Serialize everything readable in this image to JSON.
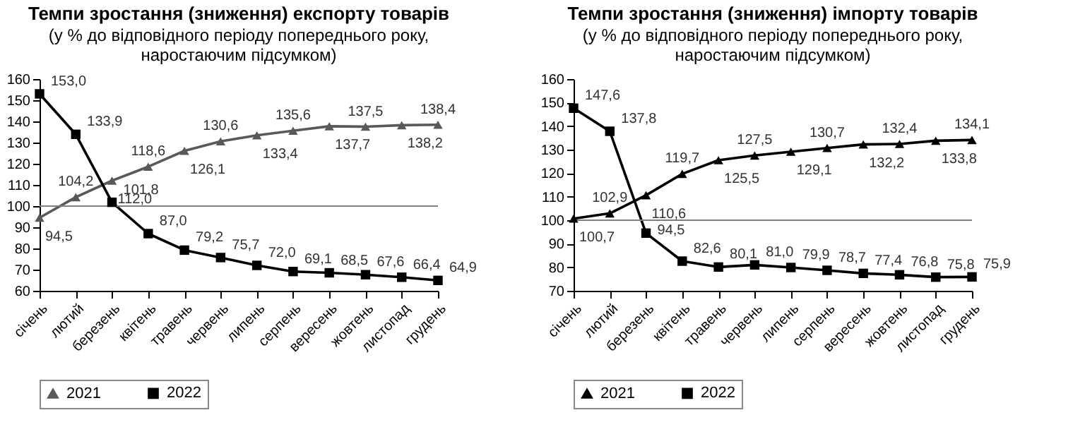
{
  "chart_data": [
    {
      "type": "line",
      "title": "Темпи зростання (зниження) експорту товарів",
      "subtitle": "(у % до відповідного періоду попереднього року, наростаючим підсумком)",
      "categories": [
        "січень",
        "лютий",
        "березень",
        "квітень",
        "травень",
        "червень",
        "липень",
        "серпень",
        "вересень",
        "жовтень",
        "листопад",
        "грудень"
      ],
      "series": [
        {
          "name": "2021",
          "color": "#595959",
          "marker": "triangle",
          "values": [
            94.5,
            104.2,
            112.0,
            118.6,
            126.1,
            130.6,
            133.4,
            135.6,
            137.7,
            137.5,
            138.2,
            138.4
          ],
          "value_labels": [
            "94,5",
            "104,2",
            "112,0",
            "118,6",
            "126,1",
            "130,6",
            "133,4",
            "135,6",
            "137,7",
            "137,5",
            "138,2",
            "138,4"
          ]
        },
        {
          "name": "2022",
          "color": "#000000",
          "marker": "square",
          "values": [
            153.0,
            133.9,
            101.8,
            87.0,
            79.2,
            75.7,
            72.0,
            69.1,
            68.5,
            67.6,
            66.4,
            64.9
          ],
          "value_labels": [
            "153,0",
            "133,9",
            "101,8",
            "87,0",
            "79,2",
            "75,7",
            "72,0",
            "69,1",
            "68,5",
            "67,6",
            "66,4",
            "64,9"
          ]
        }
      ],
      "ylim": [
        60,
        160
      ],
      "yticks": [
        60,
        70,
        80,
        90,
        100,
        110,
        120,
        130,
        140,
        150,
        160
      ],
      "ref_lines": [
        {
          "axis": "y",
          "value": 100,
          "color": "#7f7f7f"
        }
      ],
      "legend": "bottom",
      "grid": false
    },
    {
      "type": "line",
      "title": "Темпи зростання (зниження) імпорту товарів",
      "subtitle": "(у % до відповідного періоду попереднього року, наростаючим підсумком)",
      "categories": [
        "січень",
        "лютий",
        "березень",
        "квітень",
        "травень",
        "червень",
        "липень",
        "серпень",
        "вересень",
        "жовтень",
        "листопад",
        "грудень"
      ],
      "series": [
        {
          "name": "2021",
          "color": "#000000",
          "marker": "triangle",
          "values": [
            100.7,
            102.9,
            110.6,
            119.7,
            125.5,
            127.5,
            129.1,
            130.7,
            132.2,
            132.4,
            133.8,
            134.1
          ],
          "value_labels": [
            "100,7",
            "102,9",
            "110,6",
            "119,7",
            "125,5",
            "127,5",
            "129,1",
            "130,7",
            "132,2",
            "132,4",
            "133,8",
            "134,1"
          ]
        },
        {
          "name": "2022",
          "color": "#000000",
          "marker": "square",
          "values": [
            147.6,
            137.8,
            94.5,
            82.6,
            80.1,
            81.0,
            79.9,
            78.7,
            77.4,
            76.8,
            75.8,
            75.9
          ],
          "value_labels": [
            "147,6",
            "137,8",
            "94,5",
            "82,6",
            "80,1",
            "81,0",
            "79,9",
            "78,7",
            "77,4",
            "76,8",
            "75,8",
            "75,9"
          ]
        }
      ],
      "ylim": [
        70,
        160
      ],
      "yticks": [
        70,
        80,
        90,
        100,
        110,
        120,
        130,
        140,
        150,
        160
      ],
      "ref_lines": [
        {
          "axis": "y",
          "value": 100,
          "color": "#7f7f7f"
        }
      ],
      "legend": "bottom",
      "grid": false
    }
  ]
}
